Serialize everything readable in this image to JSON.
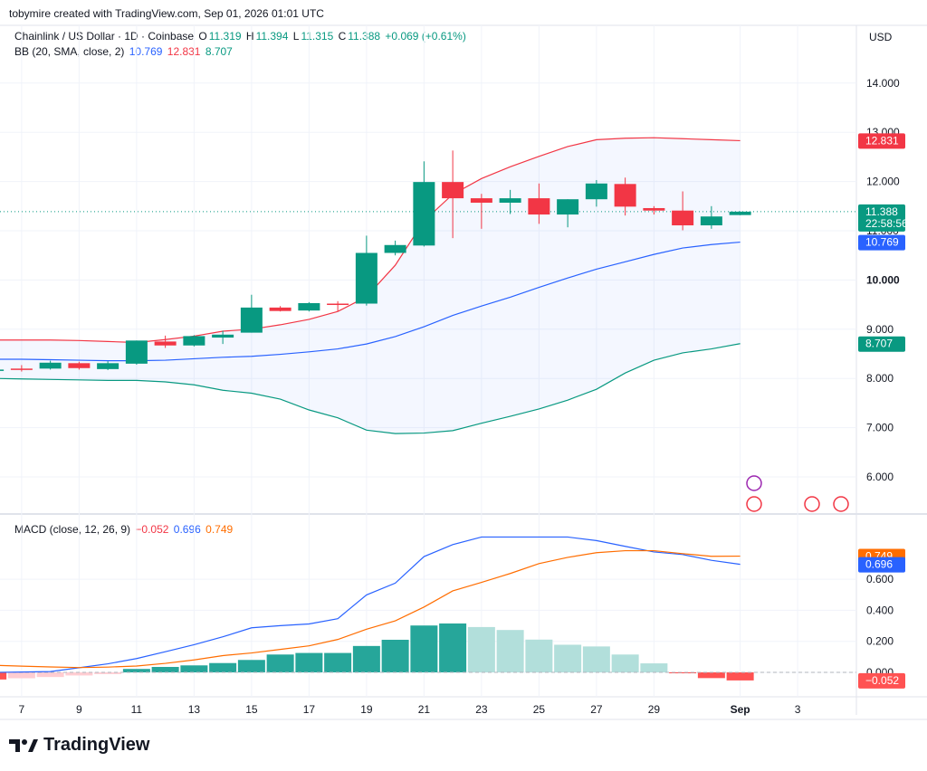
{
  "header": {
    "text": "tobymire created with TradingView.com, Sep 01, 2026 01:01 UTC"
  },
  "legend": {
    "symbol": "Chainlink / US Dollar · 1D · Coinbase",
    "o_label": "O",
    "o": "11.319",
    "h_label": "H",
    "h": "11.394",
    "l_label": "L",
    "l": "11.315",
    "c_label": "C",
    "c": "11.388",
    "change": "+0.069 (+0.61%)",
    "bb_label": "BB (20, SMA, close, 2)",
    "bb_basis": "10.769",
    "bb_upper": "12.831",
    "bb_lower": "8.707",
    "macd_label": "MACD (close, 12, 26, 9)",
    "macd_hist": "−0.052",
    "macd": "0.696",
    "macd_signal": "0.749"
  },
  "currency": "USD",
  "footer": {
    "brand": "TradingView"
  },
  "colors": {
    "up": "#089981",
    "down": "#f23645",
    "basis": "#2962ff",
    "upper": "#f23645",
    "lower": "#089981",
    "macd": "#2962ff",
    "signal": "#ff6d00"
  },
  "chart_data": [
    {
      "type": "candlestick",
      "title": "Chainlink / US Dollar · 1D · Coinbase",
      "x_ticks": [
        "7",
        "9",
        "11",
        "13",
        "15",
        "17",
        "19",
        "21",
        "23",
        "25",
        "27",
        "29",
        "Sep",
        "3"
      ],
      "y_ticks": [
        "6.000",
        "7.000",
        "8.000",
        "9.000",
        "10.000",
        "11.000",
        "12.000",
        "13.000",
        "14.000"
      ],
      "ylim": [
        5.5,
        15.0
      ],
      "price_labels": {
        "last": "11.388",
        "countdown": "22:58:56",
        "upper": "12.831",
        "basis": "10.769",
        "lower": "8.707"
      },
      "candles": [
        {
          "date": "Aug 6",
          "open": 8.17,
          "high": 8.2,
          "low": 8.15,
          "close": 8.18
        },
        {
          "date": "Aug 7",
          "open": 8.2,
          "high": 8.27,
          "low": 8.14,
          "close": 8.19
        },
        {
          "date": "Aug 8",
          "open": 8.2,
          "high": 8.36,
          "low": 8.18,
          "close": 8.32
        },
        {
          "date": "Aug 9",
          "open": 8.31,
          "high": 8.34,
          "low": 8.18,
          "close": 8.21
        },
        {
          "date": "Aug 10",
          "open": 8.19,
          "high": 8.35,
          "low": 8.17,
          "close": 8.31
        },
        {
          "date": "Aug 11",
          "open": 8.3,
          "high": 8.77,
          "low": 8.28,
          "close": 8.77
        },
        {
          "date": "Aug 12",
          "open": 8.75,
          "high": 8.87,
          "low": 8.62,
          "close": 8.67
        },
        {
          "date": "Aug 13",
          "open": 8.67,
          "high": 8.88,
          "low": 8.65,
          "close": 8.86
        },
        {
          "date": "Aug 14",
          "open": 8.83,
          "high": 8.97,
          "low": 8.7,
          "close": 8.89
        },
        {
          "date": "Aug 15",
          "open": 8.93,
          "high": 9.7,
          "low": 8.93,
          "close": 9.44
        },
        {
          "date": "Aug 16",
          "open": 9.44,
          "high": 9.47,
          "low": 9.36,
          "close": 9.37
        },
        {
          "date": "Aug 17",
          "open": 9.38,
          "high": 9.55,
          "low": 9.36,
          "close": 9.53
        },
        {
          "date": "Aug 18",
          "open": 9.52,
          "high": 9.57,
          "low": 9.36,
          "close": 9.51
        },
        {
          "date": "Aug 19",
          "open": 9.52,
          "high": 10.9,
          "low": 9.48,
          "close": 10.55
        },
        {
          "date": "Aug 20",
          "open": 10.55,
          "high": 10.8,
          "low": 10.5,
          "close": 10.71
        },
        {
          "date": "Aug 21",
          "open": 10.7,
          "high": 12.41,
          "low": 10.68,
          "close": 11.99
        },
        {
          "date": "Aug 22",
          "open": 11.99,
          "high": 12.63,
          "low": 10.85,
          "close": 11.66
        },
        {
          "date": "Aug 23",
          "open": 11.66,
          "high": 11.75,
          "low": 11.04,
          "close": 11.57
        },
        {
          "date": "Aug 24",
          "open": 11.57,
          "high": 11.83,
          "low": 11.34,
          "close": 11.66
        },
        {
          "date": "Aug 25",
          "open": 11.66,
          "high": 11.96,
          "low": 11.14,
          "close": 11.33
        },
        {
          "date": "Aug 26",
          "open": 11.33,
          "high": 11.64,
          "low": 11.07,
          "close": 11.64
        },
        {
          "date": "Aug 27",
          "open": 11.64,
          "high": 12.03,
          "low": 11.49,
          "close": 11.96
        },
        {
          "date": "Aug 28",
          "open": 11.95,
          "high": 12.08,
          "low": 11.31,
          "close": 11.49
        },
        {
          "date": "Aug 29",
          "open": 11.46,
          "high": 11.5,
          "low": 11.33,
          "close": 11.41
        },
        {
          "date": "Aug 30",
          "open": 11.41,
          "high": 11.8,
          "low": 11.01,
          "close": 11.11
        },
        {
          "date": "Aug 31",
          "open": 11.11,
          "high": 11.5,
          "low": 11.04,
          "close": 11.29
        },
        {
          "date": "Sep 1",
          "open": 11.319,
          "high": 11.394,
          "low": 11.315,
          "close": 11.388
        }
      ],
      "bollinger": {
        "label": "BB (20, SMA, close, 2)",
        "upper": [
          8.78,
          8.78,
          8.78,
          8.77,
          8.75,
          8.73,
          8.79,
          8.86,
          8.96,
          9.0,
          9.09,
          9.2,
          9.36,
          9.66,
          10.3,
          11.2,
          11.74,
          12.06,
          12.3,
          12.51,
          12.71,
          12.85,
          12.88,
          12.89,
          12.87,
          12.85,
          12.83
        ],
        "basis": [
          8.39,
          8.39,
          8.38,
          8.37,
          8.36,
          8.36,
          8.37,
          8.4,
          8.43,
          8.45,
          8.49,
          8.54,
          8.6,
          8.7,
          8.85,
          9.05,
          9.28,
          9.47,
          9.65,
          9.85,
          10.04,
          10.22,
          10.37,
          10.52,
          10.65,
          10.72,
          10.769
        ],
        "lower": [
          8.0,
          7.99,
          7.98,
          7.97,
          7.96,
          7.96,
          7.93,
          7.87,
          7.76,
          7.7,
          7.58,
          7.36,
          7.2,
          6.95,
          6.88,
          6.89,
          6.94,
          7.09,
          7.23,
          7.38,
          7.56,
          7.78,
          8.11,
          8.37,
          8.52,
          8.6,
          8.707
        ]
      }
    },
    {
      "type": "macd",
      "title": "MACD (close, 12, 26, 9)",
      "y_ticks": [
        "0.000",
        "0.200",
        "0.400",
        "0.600"
      ],
      "ylim": [
        -0.09,
        0.95
      ],
      "price_labels": {
        "signal": "0.749",
        "macd": "0.696",
        "hist": "−0.052"
      },
      "macd": [
        0.0,
        0.002,
        0.005,
        0.03,
        0.055,
        0.089,
        0.133,
        0.178,
        0.229,
        0.287,
        0.301,
        0.312,
        0.346,
        0.499,
        0.575,
        0.746,
        0.823,
        0.872,
        0.872,
        0.872,
        0.872,
        0.849,
        0.812,
        0.776,
        0.759,
        0.722,
        0.696
      ],
      "signal": [
        0.046,
        0.04,
        0.035,
        0.031,
        0.034,
        0.041,
        0.058,
        0.08,
        0.108,
        0.125,
        0.148,
        0.171,
        0.212,
        0.278,
        0.332,
        0.421,
        0.525,
        0.58,
        0.637,
        0.701,
        0.741,
        0.771,
        0.784,
        0.784,
        0.765,
        0.748,
        0.749
      ],
      "hist": [
        -0.046,
        -0.038,
        -0.03,
        -0.02,
        -0.011,
        0.022,
        0.035,
        0.045,
        0.06,
        0.08,
        0.115,
        0.125,
        0.125,
        0.17,
        0.21,
        0.302,
        0.315,
        0.292,
        0.273,
        0.211,
        0.178,
        0.167,
        0.115,
        0.058,
        -0.006,
        -0.037,
        -0.052
      ]
    }
  ]
}
